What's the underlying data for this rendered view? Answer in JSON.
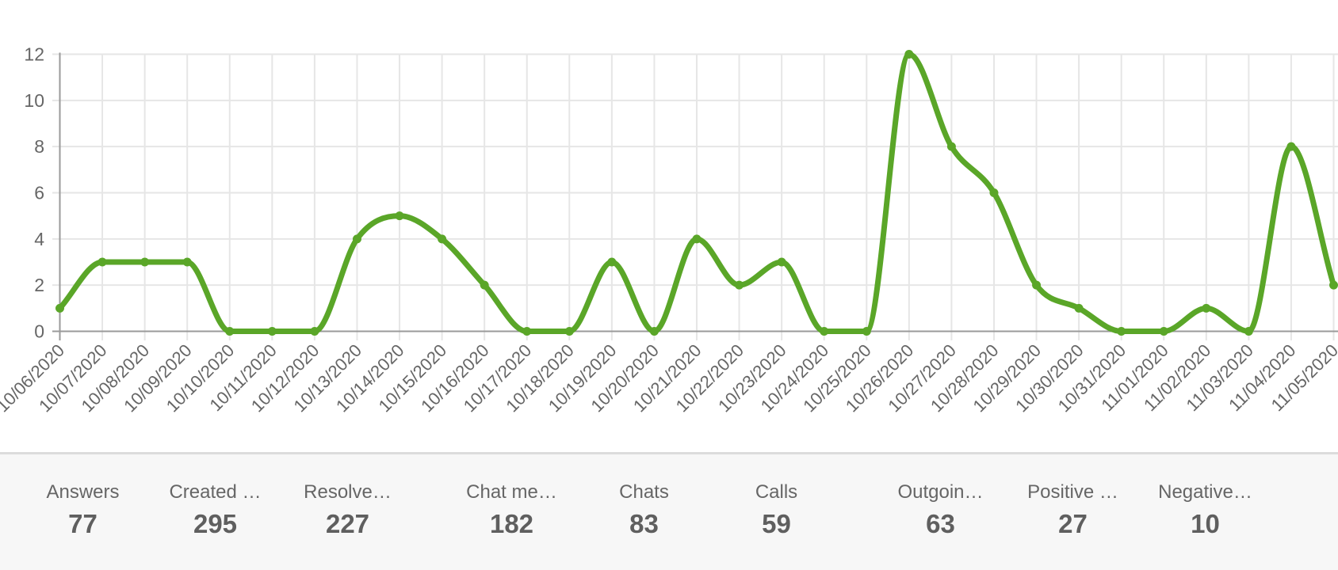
{
  "chart_data": {
    "type": "line",
    "title": "",
    "xlabel": "",
    "ylabel": "",
    "x": [
      "10/06/2020",
      "10/07/2020",
      "10/08/2020",
      "10/09/2020",
      "10/10/2020",
      "10/11/2020",
      "10/12/2020",
      "10/13/2020",
      "10/14/2020",
      "10/15/2020",
      "10/16/2020",
      "10/17/2020",
      "10/18/2020",
      "10/19/2020",
      "10/20/2020",
      "10/21/2020",
      "10/22/2020",
      "10/23/2020",
      "10/24/2020",
      "10/25/2020",
      "10/26/2020",
      "10/27/2020",
      "10/28/2020",
      "10/29/2020",
      "10/30/2020",
      "10/31/2020",
      "11/01/2020",
      "11/02/2020",
      "11/03/2020",
      "11/04/2020",
      "11/05/2020"
    ],
    "values": [
      1,
      3,
      3,
      3,
      0,
      0,
      0,
      4,
      5,
      4,
      2,
      0,
      0,
      3,
      0,
      4,
      2,
      3,
      0,
      0,
      12,
      8,
      6,
      2,
      1,
      0,
      0,
      1,
      0,
      8,
      2
    ],
    "ylim": [
      0,
      12
    ],
    "yticks": [
      0,
      2,
      4,
      6,
      8,
      10,
      12
    ],
    "grid": true,
    "legend": "none",
    "line_color": "#5aa628",
    "smooth": true,
    "point_markers": true
  },
  "stats": {
    "items": [
      {
        "id": "answers",
        "label": "Answers",
        "value": "77"
      },
      {
        "id": "created",
        "label": "Created …",
        "value": "295"
      },
      {
        "id": "resolve",
        "label": "Resolve…",
        "value": "227"
      },
      {
        "id": "chat-me",
        "label": "Chat me…",
        "value": "182"
      },
      {
        "id": "chats",
        "label": "Chats",
        "value": "83"
      },
      {
        "id": "calls",
        "label": "Calls",
        "value": "59"
      },
      {
        "id": "outgoin",
        "label": "Outgoin…",
        "value": "63"
      },
      {
        "id": "positive",
        "label": "Positive …",
        "value": "27"
      },
      {
        "id": "negative",
        "label": "Negative…",
        "value": "10"
      }
    ]
  },
  "colors": {
    "line": "#5aa628",
    "grid": "#e6e6e6",
    "axis": "#9a9a9a",
    "tick_text": "#666666",
    "stat_label": "#666666",
    "stat_value": "#5f5f5f",
    "stats_bg": "#f7f7f7",
    "stats_border": "#dcdcdc"
  }
}
